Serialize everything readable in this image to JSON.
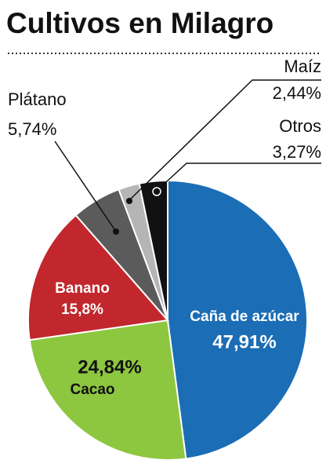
{
  "chart_data": {
    "type": "pie",
    "title": "Cultivos en Milagro",
    "categories": [
      "Caña de azúcar",
      "Cacao",
      "Banano",
      "Plátano",
      "Maíz",
      "Otros"
    ],
    "values": [
      47.91,
      24.84,
      15.8,
      5.74,
      2.44,
      3.27
    ],
    "value_labels": [
      "47,91%",
      "24,84%",
      "15,8%",
      "5,74%",
      "2,44%",
      "3,27%"
    ],
    "colors": [
      "#1b6db5",
      "#8dc63f",
      "#c1272d",
      "#5b5b5b",
      "#b5b5b5",
      "#111111"
    ]
  }
}
